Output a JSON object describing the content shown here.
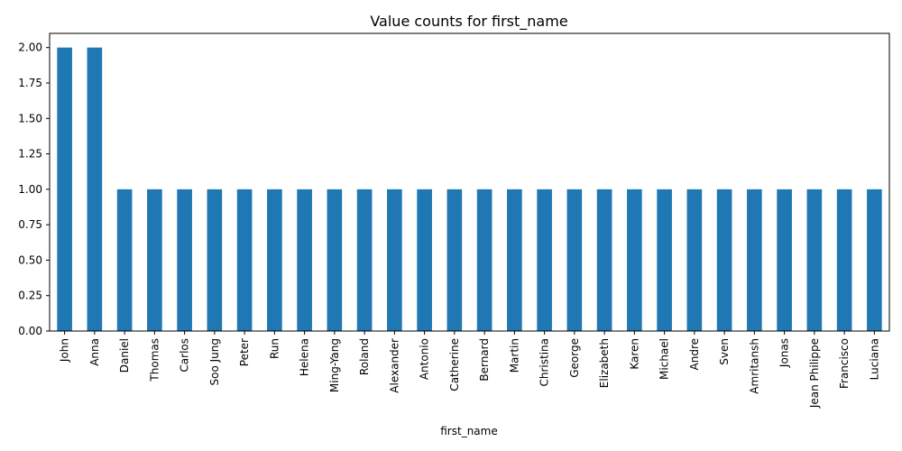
{
  "chart_data": {
    "type": "bar",
    "title": "Value counts for first_name",
    "xlabel": "first_name",
    "ylabel": "",
    "ylim": [
      0,
      2.1
    ],
    "yticks": [
      0.0,
      0.25,
      0.5,
      0.75,
      1.0,
      1.25,
      1.5,
      1.75,
      2.0
    ],
    "ytick_labels": [
      "0.00",
      "0.25",
      "0.50",
      "0.75",
      "1.00",
      "1.25",
      "1.50",
      "1.75",
      "2.00"
    ],
    "grid": false,
    "bar_color": "#1f77b4",
    "categories": [
      "John",
      "Anna",
      "Daniel",
      "Thomas",
      "Carlos",
      "Soo Jung",
      "Peter",
      "Run",
      "Helena",
      "Ming-Yang",
      "Roland",
      "Alexander",
      "Antonio",
      "Catherine",
      "Bernard",
      "Martin",
      "Christina",
      "George",
      "Elizabeth",
      "Karen",
      "Michael",
      "Andre",
      "Sven",
      "Amritansh",
      "Jonas",
      "Jean Philippe",
      "Francisco",
      "Luciana"
    ],
    "values": [
      2,
      2,
      1,
      1,
      1,
      1,
      1,
      1,
      1,
      1,
      1,
      1,
      1,
      1,
      1,
      1,
      1,
      1,
      1,
      1,
      1,
      1,
      1,
      1,
      1,
      1,
      1,
      1
    ]
  }
}
